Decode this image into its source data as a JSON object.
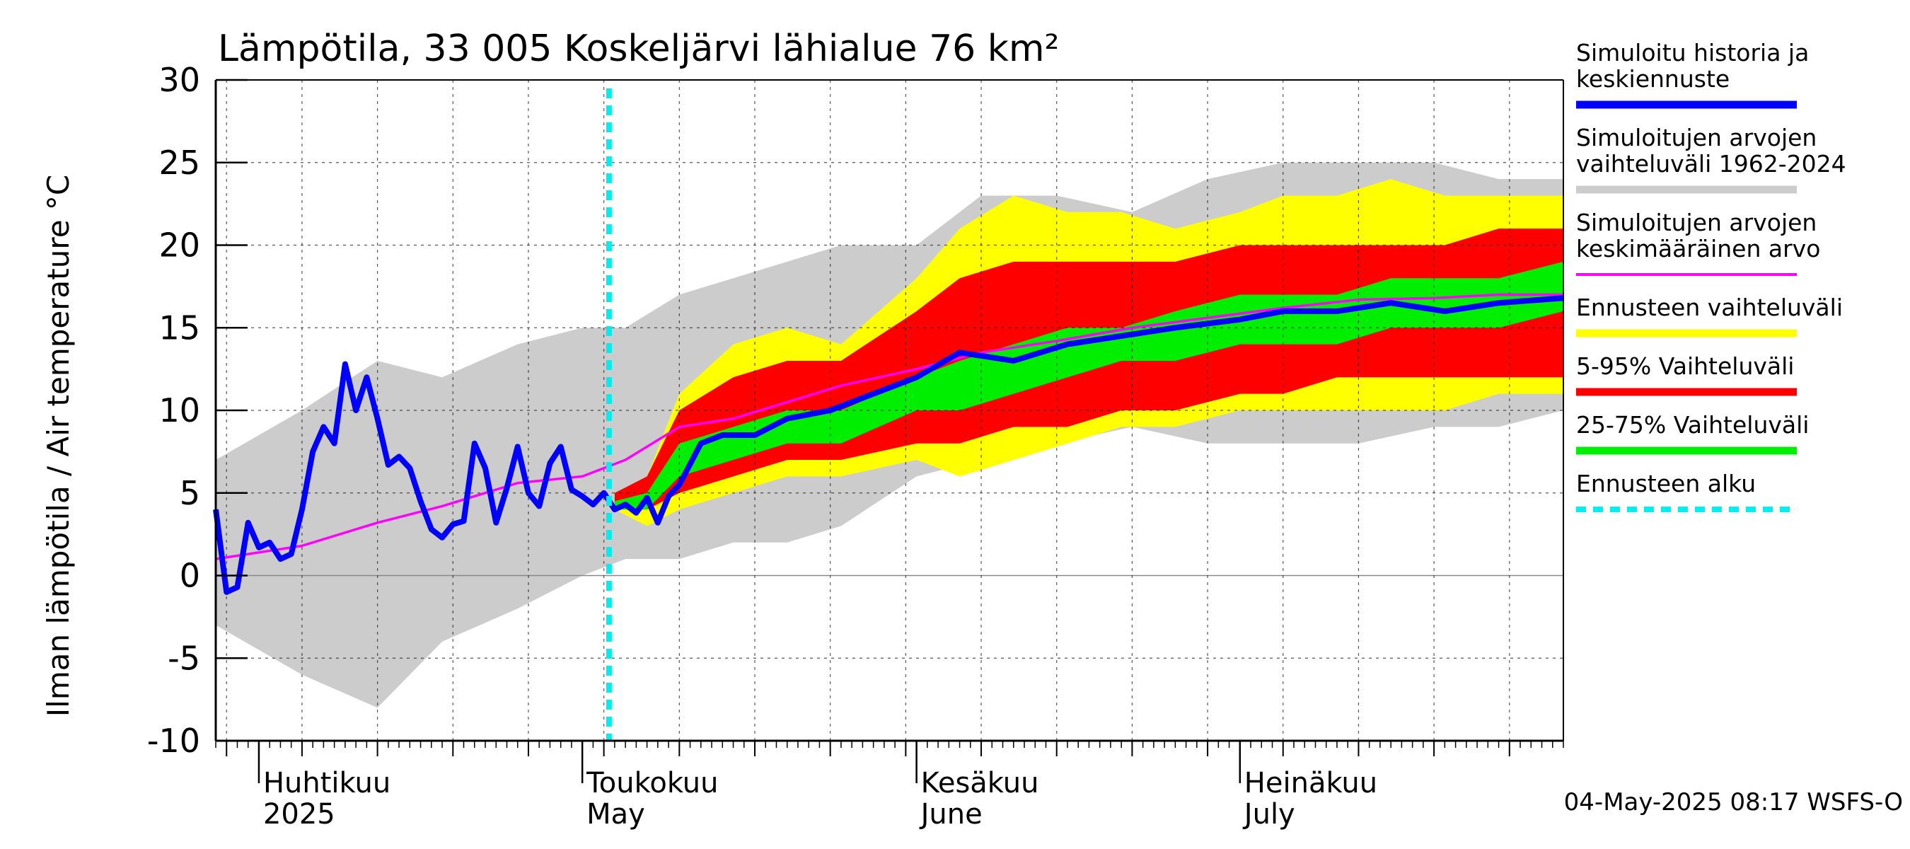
{
  "chart_data": {
    "type": "area",
    "title": "Lämpötila, 33 005 Koskeljärvi lähialue 76 km²",
    "ylabel": "Ilman lämpötila / Air temperature   °C",
    "xlabel": "",
    "ylim": [
      -10,
      30
    ],
    "yticks": [
      "30",
      "25",
      "20",
      "15",
      "10",
      "5",
      "0",
      "-5",
      "-10"
    ],
    "grid": true,
    "x_start": "2025-03-28",
    "x_end": "2025-07-31",
    "forecast_start": "2025-05-04",
    "month_labels": [
      {
        "fi": "Huhtikuu",
        "en": "2025",
        "date": "2025-04-01"
      },
      {
        "fi": "Toukokuu",
        "en": "May",
        "date": "2025-05-01"
      },
      {
        "fi": "Kesäkuu",
        "en": "June",
        "date": "2025-06-01"
      },
      {
        "fi": "Heinäkuu",
        "en": "July",
        "date": "2025-07-01"
      }
    ],
    "footer": "04-May-2025 08:17 WSFS-O",
    "legend_position": "right",
    "legend": [
      {
        "label_lines": [
          "Simuloitu historia ja",
          "keskiennuste"
        ],
        "color": "#0000ff",
        "style": "thick"
      },
      {
        "label_lines": [
          "Simuloitujen arvojen",
          "vaihteluväli 1962-2024"
        ],
        "color": "#cccccc",
        "style": "thick"
      },
      {
        "label_lines": [
          "Simuloitujen arvojen",
          "keskimääräinen arvo"
        ],
        "color": "#ff00ff",
        "style": "thin"
      },
      {
        "label_lines": [
          "Ennusteen vaihteluväli"
        ],
        "color": "#ffff00",
        "style": "thick"
      },
      {
        "label_lines": [
          "5-95% Vaihteluväli"
        ],
        "color": "#ff0000",
        "style": "thick"
      },
      {
        "label_lines": [
          "25-75% Vaihteluväli"
        ],
        "color": "#00ee00",
        "style": "thick"
      },
      {
        "label_lines": [
          "Ennusteen alku"
        ],
        "color": "#00eeee",
        "style": "dashed"
      }
    ],
    "series": [
      {
        "name": "Simuloitujen arvojen vaihteluväli 1962-2024",
        "kind": "band",
        "color": "#cccccc",
        "x": [
          "2025-03-28",
          "2025-04-05",
          "2025-04-12",
          "2025-04-18",
          "2025-04-25",
          "2025-05-01",
          "2025-05-05",
          "2025-05-10",
          "2025-05-15",
          "2025-05-20",
          "2025-05-25",
          "2025-06-01",
          "2025-06-07",
          "2025-06-14",
          "2025-06-21",
          "2025-06-28",
          "2025-07-05",
          "2025-07-12",
          "2025-07-19",
          "2025-07-25",
          "2025-07-31"
        ],
        "upper": [
          7,
          10,
          13,
          12,
          14,
          15,
          15,
          17,
          18,
          19,
          20,
          20,
          23,
          23,
          22,
          24,
          25,
          25,
          25,
          24,
          24
        ],
        "lower": [
          -3,
          -6,
          -8,
          -4,
          -2,
          0,
          1,
          1,
          2,
          2,
          3,
          6,
          7,
          8,
          9,
          8,
          8,
          8,
          9,
          9,
          10
        ]
      },
      {
        "name": "Ennusteen vaihteluväli",
        "kind": "band",
        "color": "#ffff00",
        "x": [
          "2025-05-04",
          "2025-05-07",
          "2025-05-10",
          "2025-05-15",
          "2025-05-20",
          "2025-05-25",
          "2025-06-01",
          "2025-06-05",
          "2025-06-10",
          "2025-06-15",
          "2025-06-20",
          "2025-06-25",
          "2025-07-01",
          "2025-07-05",
          "2025-07-10",
          "2025-07-15",
          "2025-07-20",
          "2025-07-25",
          "2025-07-31"
        ],
        "upper": [
          5,
          6,
          11,
          14,
          15,
          14,
          18,
          21,
          23,
          22,
          22,
          21,
          22,
          23,
          23,
          24,
          23,
          23,
          23
        ],
        "lower": [
          4,
          3,
          4,
          5,
          6,
          6,
          7,
          6,
          7,
          8,
          9,
          9,
          10,
          10,
          10,
          10,
          10,
          11,
          11
        ]
      },
      {
        "name": "5-95% Vaihteluväli",
        "kind": "band",
        "color": "#ff0000",
        "x": [
          "2025-05-04",
          "2025-05-07",
          "2025-05-10",
          "2025-05-15",
          "2025-05-20",
          "2025-05-25",
          "2025-06-01",
          "2025-06-05",
          "2025-06-10",
          "2025-06-15",
          "2025-06-20",
          "2025-06-25",
          "2025-07-01",
          "2025-07-05",
          "2025-07-10",
          "2025-07-15",
          "2025-07-20",
          "2025-07-25",
          "2025-07-31"
        ],
        "upper": [
          5,
          6,
          10,
          12,
          13,
          13,
          16,
          18,
          19,
          19,
          19,
          19,
          20,
          20,
          20,
          20,
          20,
          21,
          21
        ],
        "lower": [
          4,
          4,
          5,
          6,
          7,
          7,
          8,
          8,
          9,
          9,
          10,
          10,
          11,
          11,
          12,
          12,
          12,
          12,
          12
        ]
      },
      {
        "name": "25-75% Vaihteluväli",
        "kind": "band",
        "color": "#00ee00",
        "x": [
          "2025-05-04",
          "2025-05-07",
          "2025-05-10",
          "2025-05-15",
          "2025-05-20",
          "2025-05-25",
          "2025-06-01",
          "2025-06-05",
          "2025-06-10",
          "2025-06-15",
          "2025-06-20",
          "2025-06-25",
          "2025-07-01",
          "2025-07-05",
          "2025-07-10",
          "2025-07-15",
          "2025-07-20",
          "2025-07-25",
          "2025-07-31"
        ],
        "upper": [
          4.5,
          5,
          8,
          9,
          10,
          10,
          12,
          13,
          14,
          15,
          15,
          16,
          17,
          17,
          17,
          18,
          18,
          18,
          19
        ],
        "lower": [
          4,
          4,
          6,
          7,
          8,
          8,
          10,
          10,
          11,
          12,
          13,
          13,
          14,
          14,
          14,
          15,
          15,
          15,
          16
        ]
      },
      {
        "name": "Simuloitujen arvojen keskimääräinen arvo",
        "kind": "line",
        "color": "#ff00ff",
        "x": [
          "2025-03-28",
          "2025-04-05",
          "2025-04-12",
          "2025-04-18",
          "2025-04-25",
          "2025-05-01",
          "2025-05-05",
          "2025-05-10",
          "2025-05-15",
          "2025-05-20",
          "2025-05-25",
          "2025-06-01",
          "2025-06-07",
          "2025-06-14",
          "2025-06-21",
          "2025-06-28",
          "2025-07-05",
          "2025-07-12",
          "2025-07-19",
          "2025-07-25",
          "2025-07-31"
        ],
        "values": [
          1,
          1.8,
          3.2,
          4.2,
          5.6,
          6,
          7,
          9,
          9.5,
          10.5,
          11.5,
          12.5,
          13.5,
          14.2,
          15,
          15.6,
          16.2,
          16.7,
          16.8,
          17,
          17
        ]
      },
      {
        "name": "Simuloitu historia ja keskiennuste",
        "kind": "line",
        "color": "#0000ff",
        "x": [
          "2025-03-28",
          "2025-03-29",
          "2025-03-30",
          "2025-03-31",
          "2025-04-01",
          "2025-04-02",
          "2025-04-03",
          "2025-04-04",
          "2025-04-05",
          "2025-04-06",
          "2025-04-07",
          "2025-04-08",
          "2025-04-09",
          "2025-04-10",
          "2025-04-11",
          "2025-04-12",
          "2025-04-13",
          "2025-04-14",
          "2025-04-15",
          "2025-04-16",
          "2025-04-17",
          "2025-04-18",
          "2025-04-19",
          "2025-04-20",
          "2025-04-21",
          "2025-04-22",
          "2025-04-23",
          "2025-04-24",
          "2025-04-25",
          "2025-04-26",
          "2025-04-27",
          "2025-04-28",
          "2025-04-29",
          "2025-04-30",
          "2025-05-01",
          "2025-05-02",
          "2025-05-03",
          "2025-05-04",
          "2025-05-05",
          "2025-05-06",
          "2025-05-07",
          "2025-05-08",
          "2025-05-09",
          "2025-05-10",
          "2025-05-12",
          "2025-05-14",
          "2025-05-17",
          "2025-05-20",
          "2025-05-24",
          "2025-05-28",
          "2025-06-01",
          "2025-06-05",
          "2025-06-10",
          "2025-06-15",
          "2025-06-20",
          "2025-06-25",
          "2025-07-01",
          "2025-07-05",
          "2025-07-10",
          "2025-07-15",
          "2025-07-20",
          "2025-07-25",
          "2025-07-31"
        ],
        "values": [
          4,
          -1,
          -0.7,
          3.2,
          1.7,
          2,
          1,
          1.3,
          4,
          7.5,
          9,
          8,
          12.8,
          10,
          12,
          9.5,
          6.7,
          7.2,
          6.5,
          4.5,
          2.8,
          2.3,
          3.1,
          3.3,
          8,
          6.5,
          3.2,
          5.3,
          7.8,
          5,
          4.2,
          6.8,
          7.8,
          5.2,
          4.8,
          4.3,
          5,
          4,
          4.3,
          3.8,
          4.7,
          3.2,
          4.8,
          5.5,
          8,
          8.5,
          8.5,
          9.5,
          10,
          11,
          12,
          13.5,
          13,
          14,
          14.5,
          15,
          15.5,
          16,
          16,
          16.5,
          16,
          16.5,
          16.8
        ]
      }
    ]
  }
}
